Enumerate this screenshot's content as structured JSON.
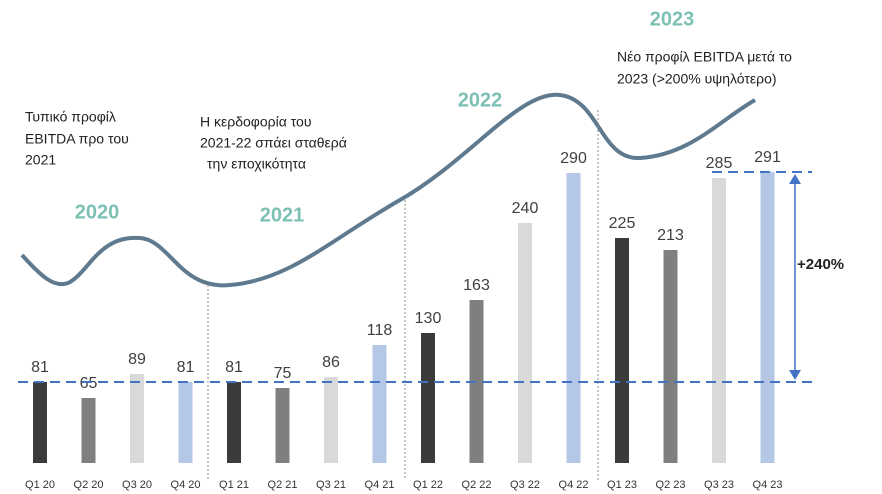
{
  "chart_data": {
    "type": "bar",
    "categories": [
      "Q1 20",
      "Q2 20",
      "Q3 20",
      "Q4 20",
      "Q1 21",
      "Q2 21",
      "Q3 21",
      "Q4 21",
      "Q1 22",
      "Q2 22",
      "Q3 22",
      "Q4 22",
      "Q1 23",
      "Q2 23",
      "Q3 23",
      "Q4 23"
    ],
    "values": [
      81,
      65,
      89,
      81,
      81,
      75,
      86,
      118,
      130,
      163,
      240,
      290,
      225,
      213,
      285,
      291
    ],
    "colors": [
      "#3b3b3b",
      "#7f7f7f",
      "#d9d9d9",
      "#b4c7e7",
      "#3b3b3b",
      "#7f7f7f",
      "#d9d9d9",
      "#b4c7e7",
      "#3b3b3b",
      "#7f7f7f",
      "#d9d9d9",
      "#b4c7e7",
      "#3b3b3b",
      "#7f7f7f",
      "#d9d9d9",
      "#b4c7e7"
    ],
    "years": [
      "2020",
      "2021",
      "2022",
      "2023"
    ],
    "annotations": [
      [
        "Τυπικό προφίλ",
        "EBITDA προ του",
        "2021"
      ],
      [
        "Η κερδοφορία του",
        "2021-22 σπάει σταθερά",
        "την εποχικότητα"
      ],
      [
        "Νέο προφίλ EBITDA μετά το",
        "2023 (>200% υψηλότερο)"
      ]
    ],
    "growth_label": "+240%"
  }
}
